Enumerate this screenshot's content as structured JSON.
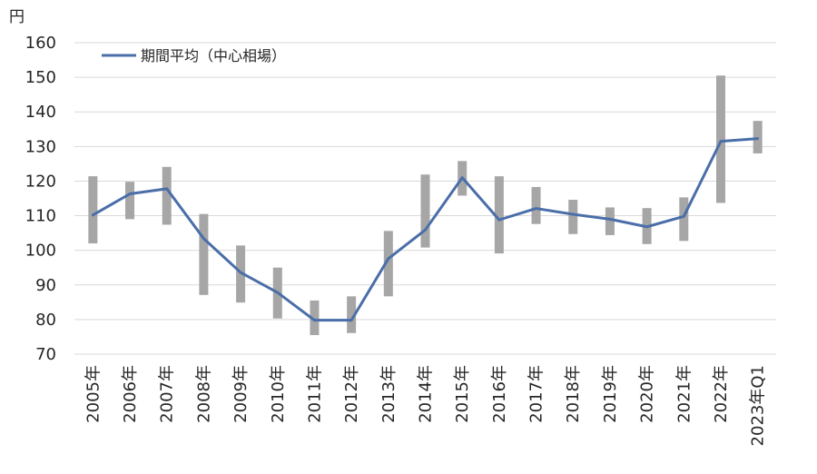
{
  "chart_data": {
    "type": "line",
    "unit_label": "円",
    "legend": {
      "label": "期間平均（中心相場）",
      "position": "top-left"
    },
    "grid": true,
    "ylim": [
      70,
      160
    ],
    "yticks": [
      70,
      80,
      90,
      100,
      110,
      120,
      130,
      140,
      150,
      160
    ],
    "categories": [
      "2005年",
      "2006年",
      "2007年",
      "2008年",
      "2009年",
      "2010年",
      "2011年",
      "2012年",
      "2013年",
      "2014年",
      "2015年",
      "2016年",
      "2017年",
      "2018年",
      "2019年",
      "2020年",
      "2021年",
      "2022年",
      "2023年Q1"
    ],
    "series": [
      {
        "name": "期間平均（中心相場）",
        "values": [
          110.2,
          116.3,
          117.8,
          103.4,
          93.6,
          87.8,
          79.8,
          79.8,
          97.6,
          105.9,
          121.0,
          108.8,
          112.1,
          110.4,
          109.0,
          106.8,
          109.8,
          131.5,
          132.3
        ]
      }
    ],
    "ranges": [
      {
        "low": 102.0,
        "high": 121.4
      },
      {
        "low": 109.0,
        "high": 119.8
      },
      {
        "low": 107.4,
        "high": 124.1
      },
      {
        "low": 87.1,
        "high": 110.5
      },
      {
        "low": 84.9,
        "high": 101.4
      },
      {
        "low": 80.3,
        "high": 95.0
      },
      {
        "low": 75.5,
        "high": 85.5
      },
      {
        "low": 76.1,
        "high": 86.7
      },
      {
        "low": 86.7,
        "high": 105.6
      },
      {
        "low": 100.8,
        "high": 121.9
      },
      {
        "low": 115.8,
        "high": 125.8
      },
      {
        "low": 99.1,
        "high": 121.4
      },
      {
        "low": 107.6,
        "high": 118.3
      },
      {
        "low": 104.7,
        "high": 114.6
      },
      {
        "low": 104.4,
        "high": 112.4
      },
      {
        "low": 101.8,
        "high": 112.2
      },
      {
        "low": 102.7,
        "high": 115.3
      },
      {
        "low": 113.7,
        "high": 150.5
      },
      {
        "low": 128.0,
        "high": 137.4
      }
    ],
    "colors": {
      "line": "#4a6ea8",
      "range_bar": "#a6a6a6"
    }
  }
}
